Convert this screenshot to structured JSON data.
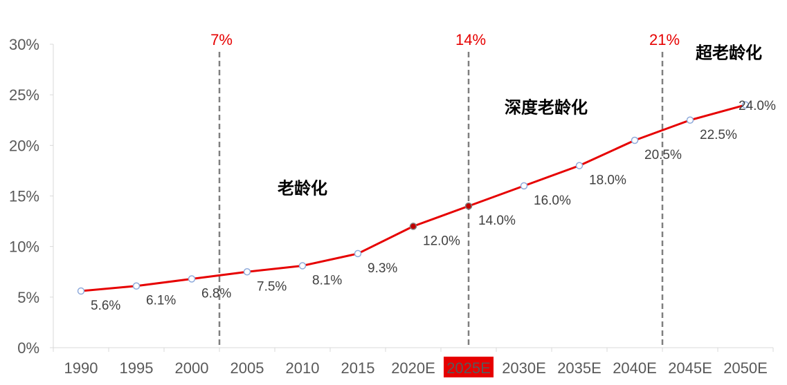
{
  "chart_data": {
    "type": "line",
    "title": "",
    "xlabel": "",
    "ylabel": "",
    "ylim": [
      0,
      30
    ],
    "yticks": [
      "0%",
      "5%",
      "10%",
      "15%",
      "20%",
      "25%",
      "30%"
    ],
    "grid": false,
    "legend": "none",
    "categories": [
      "1990",
      "1995",
      "2000",
      "2005",
      "2010",
      "2015",
      "2020E",
      "2025E",
      "2030E",
      "2035E",
      "2040E",
      "2045E",
      "2050E"
    ],
    "highlighted_category": "2025E",
    "series": [
      {
        "values": [
          5.6,
          6.1,
          6.8,
          7.5,
          8.1,
          9.3,
          12.0,
          14.0,
          16.0,
          18.0,
          20.5,
          22.5,
          24.0
        ],
        "labels": [
          "5.6%",
          "6.1%",
          "6.8%",
          "7.5%",
          "8.1%",
          "9.3%",
          "12.0%",
          "14.0%",
          "16.0%",
          "18.0%",
          "20.5%",
          "22.5%",
          "24.0%"
        ],
        "highlighted_points": [
          "2020E",
          "2025E"
        ]
      }
    ],
    "thresholds": [
      {
        "label": "7%",
        "between": [
          "2000",
          "2005"
        ]
      },
      {
        "label": "14%",
        "at": "2025E"
      },
      {
        "label": "21%",
        "between": [
          "2040E",
          "2045E"
        ]
      }
    ],
    "zones": [
      {
        "label": "老龄化"
      },
      {
        "label": "深度老龄化"
      },
      {
        "label": "超老龄化"
      }
    ]
  },
  "colors": {
    "line": "#e60000",
    "marker_fill": "#ffffff",
    "marker_stroke": "#8eaadb",
    "highlight_marker": "#c00000",
    "threshold_line": "#7f7f7f",
    "threshold_text": "#e60000",
    "highlight_tick_bg": "#e60000",
    "axis": "#d9d9d9"
  }
}
